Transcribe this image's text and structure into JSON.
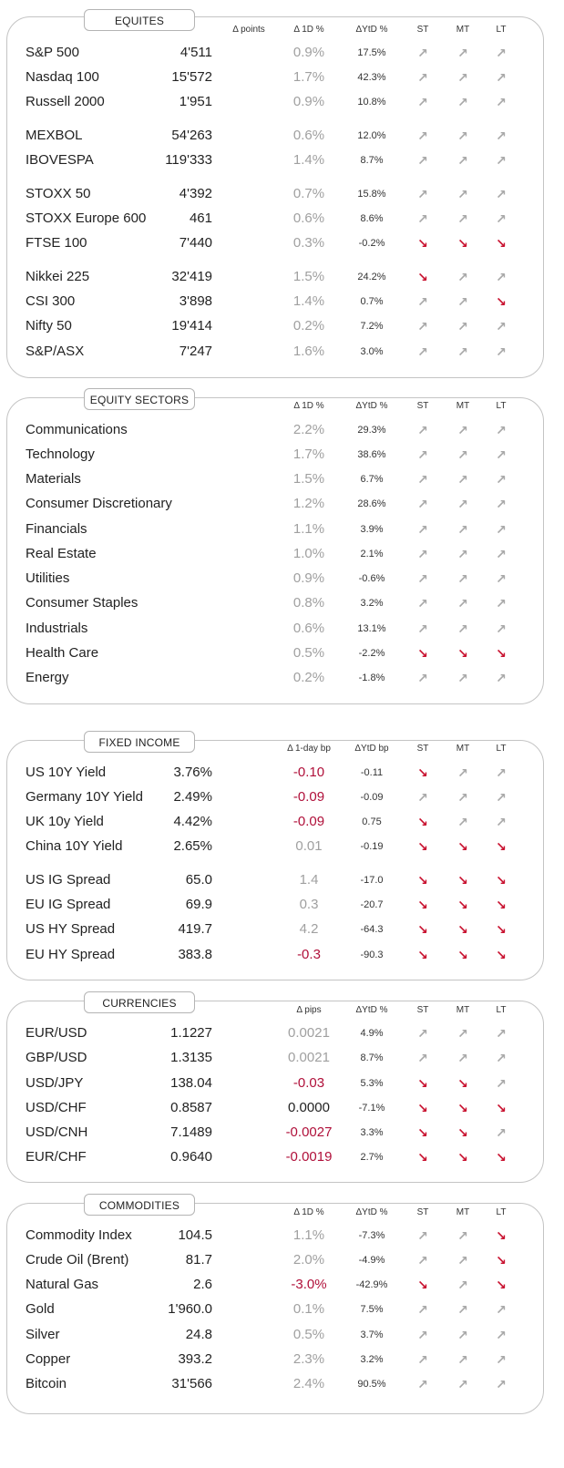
{
  "arrow_glyphs": {
    "up": "↗",
    "down": "↘"
  },
  "colors": {
    "arrow_up": "#a8a8a8",
    "arrow_down": "#c8102e",
    "negative": "#b0103a",
    "neutral": "#a0a0a0"
  },
  "sections": [
    {
      "id": "equities",
      "title": "EQUITES",
      "headers": {
        "d1": "Δ points",
        "d2": "Δ 1D %",
        "ytd": "ΔYtD %",
        "st": "ST",
        "mt": "MT",
        "lt": "LT"
      },
      "rows": [
        {
          "name": "S&P 500",
          "value": "4'511",
          "d1": "0.9%",
          "ytd": "17.5%",
          "st": "up",
          "mt": "up",
          "lt": "up",
          "d1_style": "pos"
        },
        {
          "name": "Nasdaq 100",
          "value": "15'572",
          "d1": "1.7%",
          "ytd": "42.3%",
          "st": "up",
          "mt": "up",
          "lt": "up",
          "d1_style": "pos"
        },
        {
          "name": "Russell 2000",
          "value": "1'951",
          "d1": "0.9%",
          "ytd": "10.8%",
          "st": "up",
          "mt": "up",
          "lt": "up",
          "d1_style": "pos"
        },
        {
          "name": "MEXBOL",
          "value": "54'263",
          "d1": "0.6%",
          "ytd": "12.0%",
          "st": "up",
          "mt": "up",
          "lt": "up",
          "d1_style": "pos"
        },
        {
          "name": "IBOVESPA",
          "value": "119'333",
          "d1": "1.4%",
          "ytd": "8.7%",
          "st": "up",
          "mt": "up",
          "lt": "up",
          "d1_style": "pos"
        },
        {
          "name": "STOXX 50",
          "value": "4'392",
          "d1": "0.7%",
          "ytd": "15.8%",
          "st": "up",
          "mt": "up",
          "lt": "up",
          "d1_style": "pos"
        },
        {
          "name": "STOXX Europe 600",
          "value": "461",
          "d1": "0.6%",
          "ytd": "8.6%",
          "st": "up",
          "mt": "up",
          "lt": "up",
          "d1_style": "pos"
        },
        {
          "name": "FTSE 100",
          "value": "7'440",
          "d1": "0.3%",
          "ytd": "-0.2%",
          "st": "down",
          "mt": "down",
          "lt": "down",
          "d1_style": "pos"
        },
        {
          "name": "Nikkei 225",
          "value": "32'419",
          "d1": "1.5%",
          "ytd": "24.2%",
          "st": "down",
          "mt": "up",
          "lt": "up",
          "d1_style": "pos"
        },
        {
          "name": "CSI 300",
          "value": "3'898",
          "d1": "1.4%",
          "ytd": "0.7%",
          "st": "up",
          "mt": "up",
          "lt": "down",
          "d1_style": "pos"
        },
        {
          "name": "Nifty  50",
          "value": "19'414",
          "d1": "0.2%",
          "ytd": "7.2%",
          "st": "up",
          "mt": "up",
          "lt": "up",
          "d1_style": "pos"
        },
        {
          "name": "S&P/ASX",
          "value": "7'247",
          "d1": "1.6%",
          "ytd": "3.0%",
          "st": "up",
          "mt": "up",
          "lt": "up",
          "d1_style": "pos"
        }
      ]
    },
    {
      "id": "equity-sectors",
      "title": "EQUITY  SECTORS",
      "headers": {
        "d1": "",
        "d2": "Δ 1D %",
        "ytd": "ΔYtD %",
        "st": "ST",
        "mt": "MT",
        "lt": "LT"
      },
      "rows": [
        {
          "name": "Communications",
          "value": "",
          "d1": "2.2%",
          "ytd": "29.3%",
          "st": "up",
          "mt": "up",
          "lt": "up",
          "d1_style": "pos"
        },
        {
          "name": "Technology",
          "value": "",
          "d1": "1.7%",
          "ytd": "38.6%",
          "st": "up",
          "mt": "up",
          "lt": "up",
          "d1_style": "pos"
        },
        {
          "name": "Materials",
          "value": "",
          "d1": "1.5%",
          "ytd": "6.7%",
          "st": "up",
          "mt": "up",
          "lt": "up",
          "d1_style": "pos"
        },
        {
          "name": "Consumer Discretionary",
          "value": "",
          "d1": "1.2%",
          "ytd": "28.6%",
          "st": "up",
          "mt": "up",
          "lt": "up",
          "d1_style": "pos"
        },
        {
          "name": "Financials",
          "value": "",
          "d1": "1.1%",
          "ytd": "3.9%",
          "st": "up",
          "mt": "up",
          "lt": "up",
          "d1_style": "pos"
        },
        {
          "name": "Real Estate",
          "value": "",
          "d1": "1.0%",
          "ytd": "2.1%",
          "st": "up",
          "mt": "up",
          "lt": "up",
          "d1_style": "pos"
        },
        {
          "name": "Utilities",
          "value": "",
          "d1": "0.9%",
          "ytd": "-0.6%",
          "st": "up",
          "mt": "up",
          "lt": "up",
          "d1_style": "pos"
        },
        {
          "name": "Consumer Staples",
          "value": "",
          "d1": "0.8%",
          "ytd": "3.2%",
          "st": "up",
          "mt": "up",
          "lt": "up",
          "d1_style": "pos"
        },
        {
          "name": "Industrials",
          "value": "",
          "d1": "0.6%",
          "ytd": "13.1%",
          "st": "up",
          "mt": "up",
          "lt": "up",
          "d1_style": "pos"
        },
        {
          "name": "Health Care",
          "value": "",
          "d1": "0.5%",
          "ytd": "-2.2%",
          "st": "down",
          "mt": "down",
          "lt": "down",
          "d1_style": "pos"
        },
        {
          "name": "Energy",
          "value": "",
          "d1": "0.2%",
          "ytd": "-1.8%",
          "st": "up",
          "mt": "up",
          "lt": "up",
          "d1_style": "pos"
        }
      ]
    },
    {
      "id": "fixed-income",
      "title": "FIXED  INCOME",
      "headers": {
        "d1": "",
        "d2": "Δ 1-day bp",
        "ytd": "ΔYtD bp",
        "st": "ST",
        "mt": "MT",
        "lt": "LT"
      },
      "rows": [
        {
          "name": "US 10Y Yield",
          "value": "3.76%",
          "d1": "-0.10",
          "ytd": "-0.11",
          "st": "down",
          "mt": "up",
          "lt": "up",
          "d1_style": "neg"
        },
        {
          "name": "Germany 10Y Yield",
          "value": "2.49%",
          "d1": "-0.09",
          "ytd": "-0.09",
          "st": "up",
          "mt": "up",
          "lt": "up",
          "d1_style": "neg"
        },
        {
          "name": "UK 10y Yield",
          "value": "4.42%",
          "d1": "-0.09",
          "ytd": "0.75",
          "st": "down",
          "mt": "up",
          "lt": "up",
          "d1_style": "neg"
        },
        {
          "name": "China 10Y Yield",
          "value": "2.65%",
          "d1": "0.01",
          "ytd": "-0.19",
          "st": "down",
          "mt": "down",
          "lt": "down",
          "d1_style": "pos"
        },
        {
          "name": "US IG Spread",
          "value": "65.0",
          "d1": "1.4",
          "ytd": "-17.0",
          "st": "down",
          "mt": "down",
          "lt": "down",
          "d1_style": "pos"
        },
        {
          "name": "EU IG Spread",
          "value": "69.9",
          "d1": "0.3",
          "ytd": "-20.7",
          "st": "down",
          "mt": "down",
          "lt": "down",
          "d1_style": "pos"
        },
        {
          "name": "US HY Spread",
          "value": "419.7",
          "d1": "4.2",
          "ytd": "-64.3",
          "st": "down",
          "mt": "down",
          "lt": "down",
          "d1_style": "pos"
        },
        {
          "name": "EU HY Spread",
          "value": "383.8",
          "d1": "-0.3",
          "ytd": "-90.3",
          "st": "down",
          "mt": "down",
          "lt": "down",
          "d1_style": "neg"
        }
      ]
    },
    {
      "id": "currencies",
      "title": "CURRENCIES",
      "headers": {
        "d1": "",
        "d2": "Δ pips",
        "ytd": "ΔYtD %",
        "st": "ST",
        "mt": "MT",
        "lt": "LT"
      },
      "rows": [
        {
          "name": "EUR/USD",
          "value": "1.1227",
          "d1": "0.0021",
          "ytd": "4.9%",
          "st": "up",
          "mt": "up",
          "lt": "up",
          "d1_style": "pos"
        },
        {
          "name": "GBP/USD",
          "value": "1.3135",
          "d1": "0.0021",
          "ytd": "8.7%",
          "st": "up",
          "mt": "up",
          "lt": "up",
          "d1_style": "pos"
        },
        {
          "name": "USD/JPY",
          "value": "138.04",
          "d1": "-0.03",
          "ytd": "5.3%",
          "st": "down",
          "mt": "down",
          "lt": "up",
          "d1_style": "neg"
        },
        {
          "name": "USD/CHF",
          "value": "0.8587",
          "d1": "0.0000",
          "ytd": "-7.1%",
          "st": "down",
          "mt": "down",
          "lt": "down",
          "d1_style": "zero"
        },
        {
          "name": "USD/CNH",
          "value": "7.1489",
          "d1": "-0.0027",
          "ytd": "3.3%",
          "st": "down",
          "mt": "down",
          "lt": "up",
          "d1_style": "neg"
        },
        {
          "name": "EUR/CHF",
          "value": "0.9640",
          "d1": "-0.0019",
          "ytd": "2.7%",
          "st": "down",
          "mt": "down",
          "lt": "down",
          "d1_style": "neg"
        }
      ]
    },
    {
      "id": "commodities",
      "title": "COMMODITIES",
      "headers": {
        "d1": "",
        "d2": "Δ 1D %",
        "ytd": "ΔYtD %",
        "st": "ST",
        "mt": "MT",
        "lt": "LT"
      },
      "rows": [
        {
          "name": "Commodity Index",
          "value": "104.5",
          "d1": "1.1%",
          "ytd": "-7.3%",
          "st": "up",
          "mt": "up",
          "lt": "down",
          "d1_style": "pos"
        },
        {
          "name": "Crude Oil (Brent)",
          "value": "81.7",
          "d1": "2.0%",
          "ytd": "-4.9%",
          "st": "up",
          "mt": "up",
          "lt": "down",
          "d1_style": "pos"
        },
        {
          "name": "Natural Gas",
          "value": "2.6",
          "d1": "-3.0%",
          "ytd": "-42.9%",
          "st": "down",
          "mt": "up",
          "lt": "down",
          "d1_style": "neg"
        },
        {
          "name": "Gold",
          "value": "1'960.0",
          "d1": "0.1%",
          "ytd": "7.5%",
          "st": "up",
          "mt": "up",
          "lt": "up",
          "d1_style": "pos"
        },
        {
          "name": "Silver",
          "value": "24.8",
          "d1": "0.5%",
          "ytd": "3.7%",
          "st": "up",
          "mt": "up",
          "lt": "up",
          "d1_style": "pos"
        },
        {
          "name": "Copper",
          "value": "393.2",
          "d1": "2.3%",
          "ytd": "3.2%",
          "st": "up",
          "mt": "up",
          "lt": "up",
          "d1_style": "pos"
        },
        {
          "name": "Bitcoin",
          "value": "31'566",
          "d1": "2.4%",
          "ytd": "90.5%",
          "st": "up",
          "mt": "up",
          "lt": "up",
          "d1_style": "pos"
        }
      ]
    }
  ]
}
